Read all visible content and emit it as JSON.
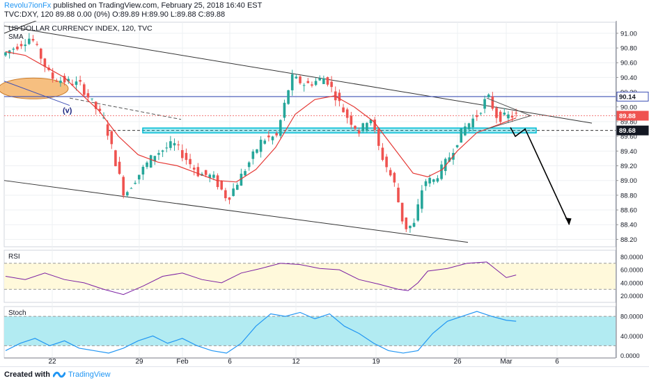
{
  "header": {
    "author": "Revolu7ionFx",
    "published_text": "published on TradingView.com, February 25, 2018 16:40 EST",
    "symbol_line": "TVC:DXY, 120  89.88 0.00 (0%) O:89.89 H:89.90 L:89.88 C:89.88"
  },
  "footer": {
    "created_with": "Created with",
    "brand": "TradingView"
  },
  "colors": {
    "up": "#26a69a",
    "down": "#ef5350",
    "sma": "#e53935",
    "trendline": "#333333",
    "resistance": "#3f51b5",
    "support_zone": "#00bcd4",
    "rsi_line": "#7b1fa2",
    "rsi_band": "#fff9db",
    "stoch_line": "#2196f3",
    "stoch_band": "#b2ebf2",
    "ellipse": "#f5b46a"
  },
  "chart_data": [
    {
      "type": "candlestick",
      "title": "US DOLLAR CURRENCY INDEX, 120, TVC",
      "indicator_label": "SMA",
      "wave_label": "(v)",
      "x_tick_labels": [
        "22",
        "29",
        "Feb",
        "6",
        "12",
        "19",
        "26",
        "Mar",
        "6"
      ],
      "y_tick_labels": [
        "91.00",
        "90.80",
        "90.60",
        "90.40",
        "90.20",
        "90.00",
        "89.80",
        "89.60",
        "89.40",
        "89.20",
        "89.00",
        "88.80",
        "88.60",
        "88.40",
        "88.20"
      ],
      "ylim": [
        88.1,
        91.15
      ],
      "price_tags": [
        {
          "label": "90.14",
          "value": 90.14,
          "style": "resistance"
        },
        {
          "label": "89.88",
          "value": 89.88,
          "style": "last"
        },
        {
          "label": "89.68",
          "value": 89.68,
          "style": "level"
        }
      ],
      "price_path": [
        [
          0,
          90.7
        ],
        [
          6,
          90.95
        ],
        [
          10,
          90.4
        ],
        [
          16,
          90.3
        ],
        [
          21,
          89.8
        ],
        [
          25,
          88.8
        ],
        [
          27,
          89.0
        ],
        [
          31,
          89.35
        ],
        [
          35,
          89.5
        ],
        [
          40,
          89.1
        ],
        [
          43,
          89.05
        ],
        [
          46,
          88.75
        ],
        [
          50,
          89.2
        ],
        [
          53,
          89.55
        ],
        [
          56,
          89.6
        ],
        [
          59,
          90.4
        ],
        [
          62,
          90.3
        ],
        [
          66,
          90.4
        ],
        [
          70,
          89.9
        ],
        [
          73,
          89.65
        ],
        [
          75,
          89.9
        ],
        [
          77,
          89.4
        ],
        [
          80,
          88.95
        ],
        [
          82,
          88.35
        ],
        [
          84,
          88.4
        ],
        [
          86,
          89.0
        ],
        [
          88,
          89.0
        ],
        [
          91,
          89.3
        ],
        [
          94,
          89.7
        ],
        [
          97,
          89.9
        ],
        [
          99,
          90.15
        ],
        [
          101,
          89.85
        ],
        [
          104,
          89.88
        ]
      ],
      "sma_path": [
        [
          0,
          90.75
        ],
        [
          4,
          90.7
        ],
        [
          8,
          90.55
        ],
        [
          12,
          90.4
        ],
        [
          15,
          90.2
        ],
        [
          19,
          89.95
        ],
        [
          23,
          89.6
        ],
        [
          27,
          89.35
        ],
        [
          31,
          89.25
        ],
        [
          35,
          89.2
        ],
        [
          39,
          89.1
        ],
        [
          43,
          89.0
        ],
        [
          47,
          88.98
        ],
        [
          51,
          89.15
        ],
        [
          55,
          89.45
        ],
        [
          59,
          89.9
        ],
        [
          63,
          90.1
        ],
        [
          67,
          90.15
        ],
        [
          71,
          90.0
        ],
        [
          75,
          89.8
        ],
        [
          79,
          89.45
        ],
        [
          83,
          89.1
        ],
        [
          86,
          89.05
        ],
        [
          89,
          89.15
        ],
        [
          92,
          89.4
        ],
        [
          96,
          89.65
        ],
        [
          100,
          89.75
        ],
        [
          104,
          89.85
        ]
      ],
      "projection_path": [
        [
          100,
          89.72
        ],
        [
          101,
          89.6
        ],
        [
          103,
          89.7
        ],
        [
          112,
          88.4
        ]
      ]
    },
    {
      "type": "line",
      "title": "RSI",
      "y_tick_labels": [
        "80.0000",
        "60.0000",
        "40.0000",
        "20.0000"
      ],
      "ylim": [
        10,
        90
      ],
      "band": [
        30,
        70
      ],
      "values": [
        [
          0,
          50
        ],
        [
          4,
          45
        ],
        [
          8,
          55
        ],
        [
          12,
          45
        ],
        [
          16,
          40
        ],
        [
          20,
          30
        ],
        [
          24,
          22
        ],
        [
          28,
          35
        ],
        [
          32,
          50
        ],
        [
          36,
          55
        ],
        [
          40,
          45
        ],
        [
          44,
          40
        ],
        [
          48,
          55
        ],
        [
          52,
          62
        ],
        [
          56,
          70
        ],
        [
          60,
          68
        ],
        [
          64,
          62
        ],
        [
          68,
          60
        ],
        [
          72,
          45
        ],
        [
          76,
          38
        ],
        [
          80,
          30
        ],
        [
          82,
          28
        ],
        [
          84,
          40
        ],
        [
          86,
          58
        ],
        [
          90,
          62
        ],
        [
          94,
          70
        ],
        [
          98,
          72
        ],
        [
          100,
          60
        ],
        [
          102,
          48
        ],
        [
          104,
          52
        ]
      ]
    },
    {
      "type": "line",
      "title": "Stoch",
      "y_tick_labels": [
        "80.0000",
        "40.0000",
        "0.0000"
      ],
      "ylim": [
        -5,
        100
      ],
      "band": [
        20,
        80
      ],
      "values": [
        [
          0,
          10
        ],
        [
          3,
          25
        ],
        [
          6,
          35
        ],
        [
          9,
          20
        ],
        [
          12,
          30
        ],
        [
          15,
          15
        ],
        [
          18,
          10
        ],
        [
          21,
          5
        ],
        [
          24,
          15
        ],
        [
          27,
          30
        ],
        [
          30,
          40
        ],
        [
          33,
          25
        ],
        [
          36,
          35
        ],
        [
          39,
          20
        ],
        [
          42,
          10
        ],
        [
          45,
          5
        ],
        [
          48,
          25
        ],
        [
          51,
          60
        ],
        [
          54,
          85
        ],
        [
          57,
          80
        ],
        [
          60,
          88
        ],
        [
          63,
          75
        ],
        [
          66,
          85
        ],
        [
          69,
          60
        ],
        [
          72,
          45
        ],
        [
          75,
          25
        ],
        [
          78,
          10
        ],
        [
          81,
          5
        ],
        [
          84,
          10
        ],
        [
          87,
          45
        ],
        [
          90,
          70
        ],
        [
          93,
          80
        ],
        [
          96,
          90
        ],
        [
          99,
          80
        ],
        [
          102,
          72
        ],
        [
          104,
          70
        ]
      ]
    }
  ]
}
